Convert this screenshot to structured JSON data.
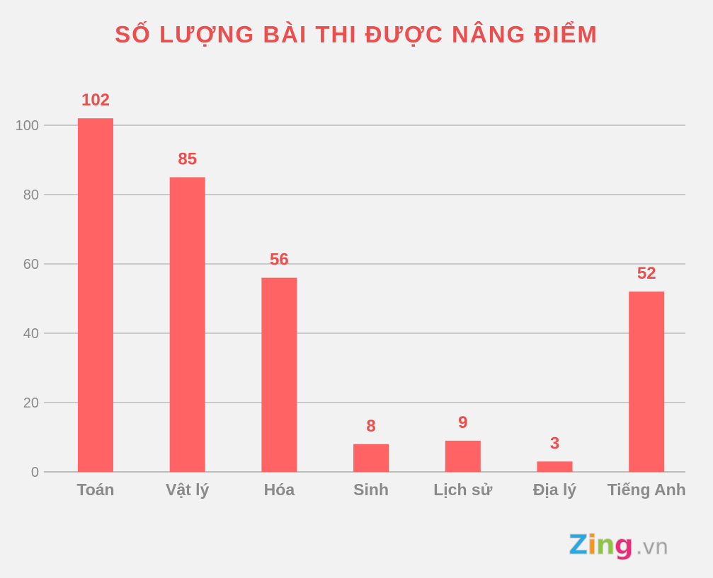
{
  "chart_data": {
    "type": "bar",
    "title": "SỐ LƯỢNG BÀI THI ĐƯỢC NÂNG ĐIỂM",
    "categories": [
      "Toán",
      "Vật lý",
      "Hóa",
      "Sinh",
      "Lịch sử",
      "Địa lý",
      "Tiếng Anh"
    ],
    "values": [
      102,
      85,
      56,
      8,
      9,
      3,
      52
    ],
    "xlabel": "",
    "ylabel": "",
    "ylim": [
      0,
      100
    ],
    "yticks": [
      0,
      20,
      40,
      60,
      80,
      100
    ],
    "grid": true,
    "colors": {
      "bar": "#ff6363",
      "label": "#ec4d4d",
      "title": "#ec4d4d",
      "axis_text": "#8a8a8a",
      "grid": "#a0a0a0",
      "background": "#f2f2f2"
    }
  },
  "logo": {
    "text": "Zing",
    "suffix": ".vn",
    "colors": [
      "#29a8e0",
      "#f7941d",
      "#8dc63f",
      "#ec2a7a"
    ]
  }
}
